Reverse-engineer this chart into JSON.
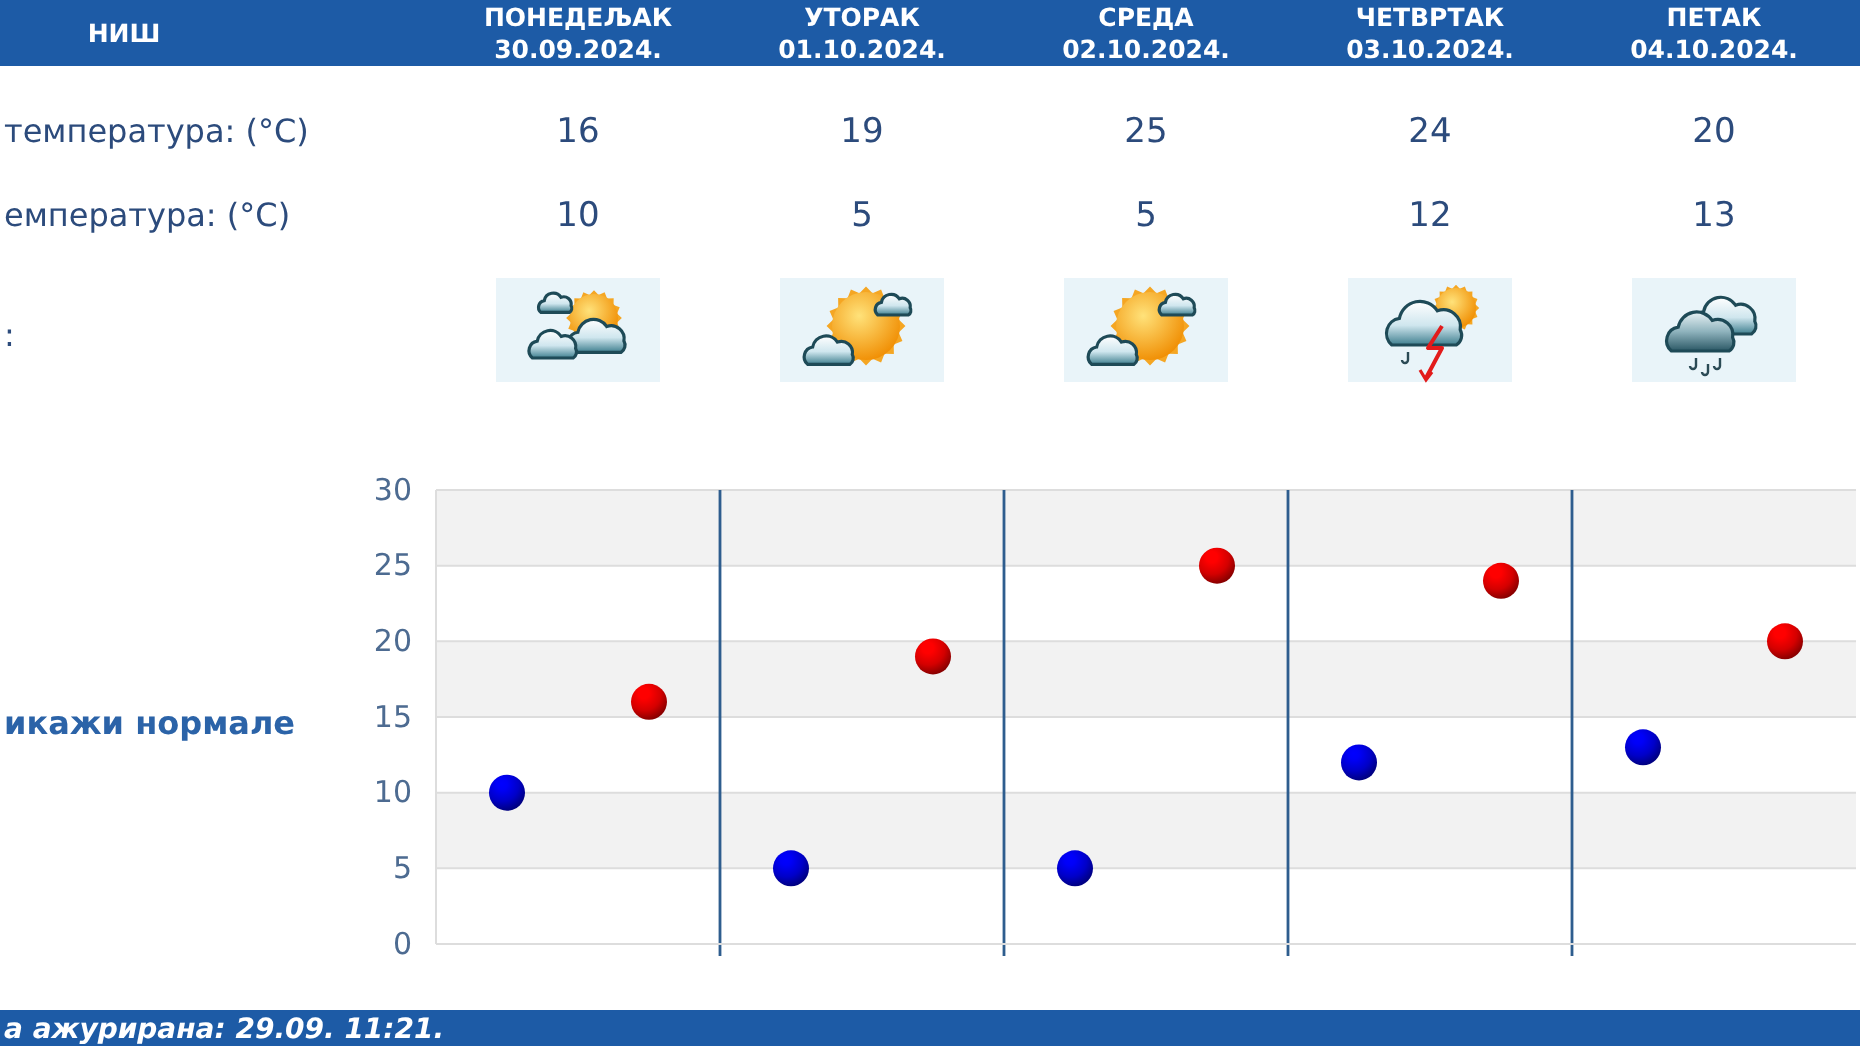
{
  "chart_data": {
    "type": "scatter",
    "title": "НИШ",
    "categories": [
      null,
      null,
      null,
      null,
      null
    ],
    "series": [
      {
        "color": "#d40000",
        "values": [
          16,
          19,
          25,
          24,
          20
        ]
      },
      {
        "color": "#0000c8",
        "values": [
          10,
          5,
          5,
          12,
          13
        ]
      }
    ],
    "ylim": [
      0,
      30
    ],
    "yticks": [
      0,
      5,
      10,
      15,
      20,
      25,
      30
    ],
    "grid": true,
    "marker": "circle",
    "data_labels": true,
    "annotations": [
      "ПОНЕДЕЉАК\n30.09.2024.",
      "УТОРАК\n01.10.2024.",
      "СРЕДА\n02.10.2024.",
      "ЧЕТВРТАК\n03.10.2024.",
      "ПЕТАК\n04.10.2024.",
      "температура: (°C)",
      "емпература: (°C)",
      ":",
      "икажи нормале",
      "а ажурирана: 29.09. 11:21."
    ]
  }
}
